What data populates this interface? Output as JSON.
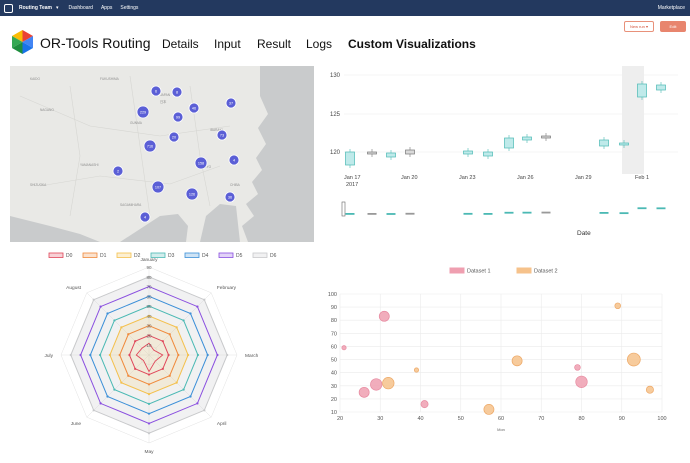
{
  "topbar": {
    "team": "Routing Team",
    "caret": "▾",
    "nav": [
      "Dashboard",
      "Apps",
      "Settings"
    ],
    "marketplace": "Marketplace"
  },
  "header": {
    "brand": "OR-Tools Routing",
    "tabs": [
      "Details",
      "Input",
      "Result",
      "Logs",
      "Custom Visualizations"
    ],
    "active_tab": "Custom Visualizations",
    "new_run": "New run ▾",
    "edit": "Edit"
  },
  "map": {
    "clusters": [
      "6",
      "8",
      "46",
      "37",
      "229",
      "99",
      "20",
      "73",
      "716",
      "158",
      "4",
      "2",
      "107",
      "126",
      "36",
      "4"
    ]
  },
  "candlestick": {
    "yticks": [
      "130",
      "125",
      "120"
    ],
    "xticks": [
      "Jan 17",
      "Jan 20",
      "Jan 23",
      "Jan 26",
      "Jan 29",
      "Feb 1"
    ],
    "xyear": "2017",
    "xlabel": "Date"
  },
  "radar": {
    "legend": [
      "D0",
      "D1",
      "D2",
      "D3",
      "D4",
      "D5",
      "D6"
    ],
    "colors": [
      "#e0475a",
      "#f08a3c",
      "#f4c04d",
      "#4bb9b4",
      "#3b8fd8",
      "#8a4fe0",
      "#c8c9cb"
    ],
    "axes": [
      "January",
      "February",
      "March",
      "April",
      "May",
      "June",
      "July",
      "August"
    ],
    "ticks": [
      "10",
      "20",
      "30",
      "40",
      "50",
      "60",
      "70",
      "80",
      "90"
    ]
  },
  "chart_data": {
    "type": "scatter",
    "legend": [
      "Dataset 1",
      "Dataset 2"
    ],
    "colors": [
      "#ef9fb0",
      "#f6c28b"
    ],
    "xlabel": "Mon",
    "xlim": [
      20,
      100
    ],
    "ylim": [
      10,
      100
    ],
    "xticks": [
      "20",
      "30",
      "40",
      "50",
      "60",
      "70",
      "80",
      "90",
      "100"
    ],
    "yticks": [
      "100",
      "90",
      "80",
      "70",
      "60",
      "50",
      "40",
      "30",
      "20",
      "10"
    ],
    "series": [
      {
        "name": "Dataset 1",
        "points": [
          [
            21,
            59,
            3
          ],
          [
            26,
            25,
            7
          ],
          [
            29,
            31,
            8
          ],
          [
            31,
            83,
            7
          ],
          [
            41,
            16,
            5
          ],
          [
            79,
            44,
            4
          ],
          [
            80,
            33,
            8
          ]
        ]
      },
      {
        "name": "Dataset 2",
        "points": [
          [
            32,
            32,
            8
          ],
          [
            39,
            42,
            3
          ],
          [
            57,
            12,
            7
          ],
          [
            64,
            49,
            7
          ],
          [
            89,
            91,
            4
          ],
          [
            93,
            50,
            9
          ],
          [
            97,
            27,
            5
          ]
        ]
      }
    ]
  }
}
